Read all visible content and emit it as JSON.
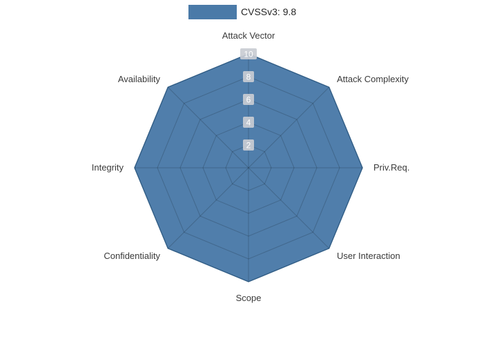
{
  "legend": {
    "label": "CVSSv3: 9.8"
  },
  "colors": {
    "series_fill": "#4a7aa8",
    "series_line": "#3c6e9c",
    "grid_line": "rgba(0,0,0,0.18)",
    "tick_badge": "#c9ccd2",
    "tick_text": "#ffffff",
    "axis_label": "#3a3a3a"
  },
  "chart_data": {
    "type": "radar",
    "title": "CVSSv3: 9.8",
    "axes": [
      "Attack Vector",
      "Attack Complexity",
      "Priv.Req.",
      "User Interaction",
      "Scope",
      "Confidentiality",
      "Integrity",
      "Availability"
    ],
    "series": [
      {
        "name": "CVSSv3: 9.8",
        "values": [
          10,
          10,
          10,
          10,
          10,
          10,
          10,
          10
        ]
      }
    ],
    "ticks": [
      2,
      4,
      6,
      8,
      10
    ],
    "range": [
      0,
      10
    ],
    "grid": true,
    "legend_position": "top-center"
  }
}
